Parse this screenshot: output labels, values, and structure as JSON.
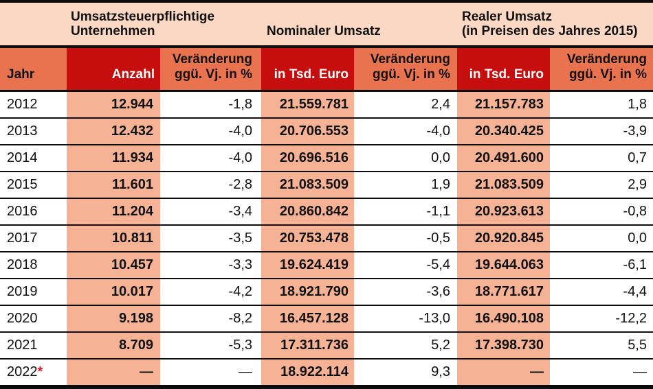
{
  "chart_data": {
    "type": "table",
    "column_groups": [
      {
        "label": "Umsatzsteuerpflichtige Unternehmen",
        "columns": [
          "Anzahl",
          "Veränderung ggü. Vj. in %"
        ]
      },
      {
        "label": "Nominaler Umsatz",
        "columns": [
          "in Tsd. Euro",
          "Veränderung ggü. Vj. in %"
        ]
      },
      {
        "label": "Realer Umsatz (in Preisen des Jahres 2015)",
        "columns": [
          "in Tsd. Euro",
          "Veränderung ggü. Vj. in %"
        ]
      }
    ],
    "columns": [
      "Jahr",
      "Anzahl",
      "Veränderung ggü. Vj. in %",
      "in Tsd. Euro",
      "Veränderung ggü. Vj. in %",
      "in Tsd. Euro",
      "Veränderung ggü. Vj. in %"
    ],
    "rows": [
      [
        "2012",
        "12.944",
        "-1,8",
        "21.559.781",
        "2,4",
        "21.157.783",
        "1,8"
      ],
      [
        "2013",
        "12.432",
        "-4,0",
        "20.706.553",
        "-4,0",
        "20.340.425",
        "-3,9"
      ],
      [
        "2014",
        "11.934",
        "-4,0",
        "20.696.516",
        "0,0",
        "20.491.600",
        "0,7"
      ],
      [
        "2015",
        "11.601",
        "-2,8",
        "21.083.509",
        "1,9",
        "21.083.509",
        "2,9"
      ],
      [
        "2016",
        "11.204",
        "-3,4",
        "20.860.842",
        "-1,1",
        "20.923.613",
        "-0,8"
      ],
      [
        "2017",
        "10.811",
        "-3,5",
        "20.753.478",
        "-0,5",
        "20.920.845",
        "0,0"
      ],
      [
        "2018",
        "10.457",
        "-3,3",
        "19.624.419",
        "-5,4",
        "19.644.063",
        "-6,1"
      ],
      [
        "2019",
        "10.017",
        "-4,2",
        "18.921.790",
        "-3,6",
        "18.771.617",
        "-4,4"
      ],
      [
        "2020",
        "9.198",
        "-8,2",
        "16.457.128",
        "-13,0",
        "16.490.108",
        "-12,2"
      ],
      [
        "2021",
        "8.709",
        "-5,3",
        "17.311.736",
        "5,2",
        "17.398.730",
        "5,5"
      ],
      [
        "2022*",
        "—",
        "—",
        "18.922.114",
        "9,3",
        "—",
        "—"
      ]
    ],
    "footnote_marker": "*"
  },
  "header": {
    "groups": [
      {
        "line1": "Umsatzsteuerpflichtige",
        "line2": "Unternehmen"
      },
      {
        "line1": "Nominaler Umsatz",
        "line2": ""
      },
      {
        "line1": "Realer Umsatz",
        "line2": "(in Preisen des Jahres 2015)"
      }
    ],
    "columns": [
      {
        "line1": "Jahr",
        "line2": ""
      },
      {
        "line1": "Anzahl",
        "line2": ""
      },
      {
        "line1": "Veränderung",
        "line2": "ggü. Vj. in %"
      },
      {
        "line1": "in Tsd. Euro",
        "line2": ""
      },
      {
        "line1": "Veränderung",
        "line2": "ggü. Vj. in %"
      },
      {
        "line1": "in Tsd. Euro",
        "line2": ""
      },
      {
        "line1": "Veränderung",
        "line2": "ggü. Vj. in %"
      }
    ]
  },
  "colors": {
    "header_red": "#c60e0f",
    "header_orange": "#e8734e",
    "band_peach": "#fad8c3",
    "band_salmon": "#f5b294",
    "footnote_red": "#e8191f",
    "ink": "#111111",
    "rule": "#0d0d0d"
  }
}
